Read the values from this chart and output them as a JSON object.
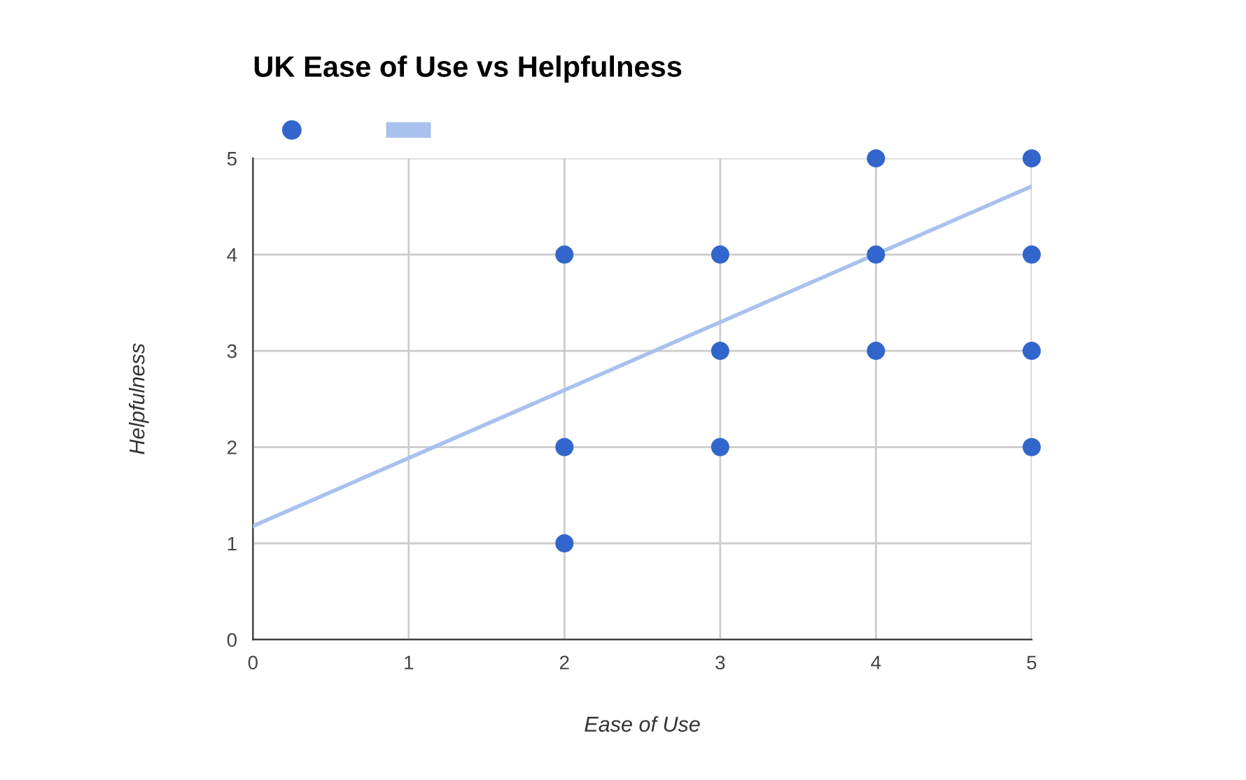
{
  "chart_data": {
    "type": "scatter",
    "title": "UK Ease of Use vs Helpfulness",
    "xlabel": "Ease of Use",
    "ylabel": "Helpfulness",
    "series": [
      {
        "color": "#3366cc",
        "marker": "circle",
        "x": [
          2,
          2,
          2,
          3,
          3,
          3,
          4,
          4,
          4,
          5,
          5,
          5,
          5
        ],
        "values": [
          4,
          2,
          1,
          4,
          3,
          2,
          5,
          4,
          3,
          5,
          4,
          3,
          2
        ]
      },
      {
        "type": "line",
        "color": "#a9c1ee",
        "x": [
          0,
          5
        ],
        "values": [
          1.18,
          4.71
        ]
      }
    ],
    "xlim": [
      0,
      5
    ],
    "ylim": [
      0,
      5
    ],
    "xticks": [
      0,
      1,
      2,
      3,
      4,
      5
    ],
    "yticks": [
      0,
      1,
      2,
      3,
      4,
      5
    ],
    "grid": true
  }
}
